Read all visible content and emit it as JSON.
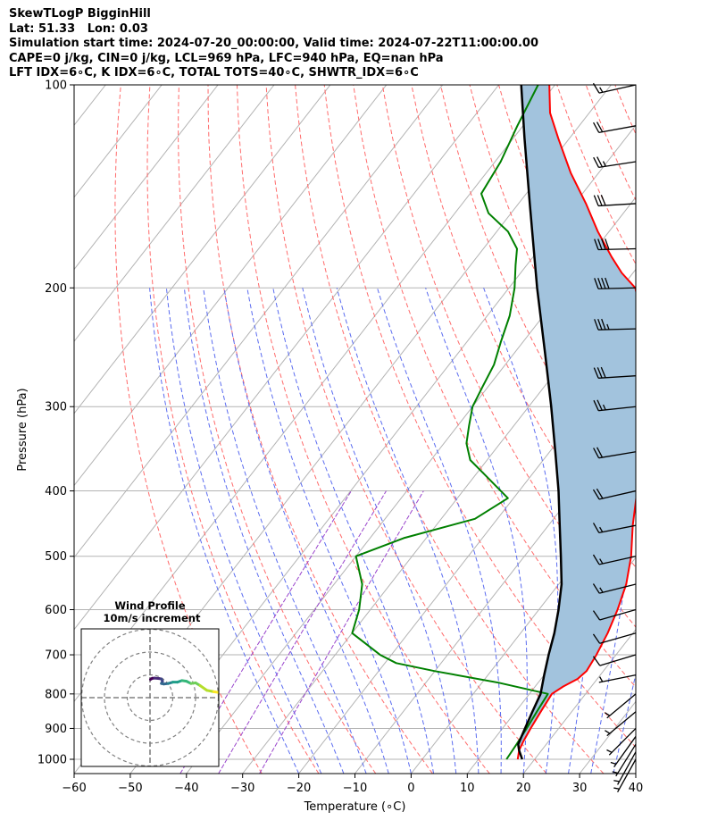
{
  "header": {
    "line1": "SkewTLogP BigginHill",
    "line2": "Lat: 51.33   Lon: 0.03",
    "line3": "Simulation start time: 2024-07-20_00:00:00, Valid time: 2024-07-22T11:00:00.00",
    "line4": "CAPE=0 j/kg, CIN=0 j/kg, LCL=969 hPa, LFC=940 hPa, EQ=nan hPa",
    "line5": "LFT IDX=6∘C, K IDX=6∘C, TOTAL TOTS=40∘C, SHWTR_IDX=6∘C"
  },
  "chart_data": {
    "type": "line",
    "subtype": "skew-t log-p",
    "xlabel": "Temperature (∘C)",
    "ylabel": "Pressure (hPa)",
    "xlim": [
      -60,
      40
    ],
    "ylim": [
      1050,
      100
    ],
    "y_scale": "log",
    "grid": true,
    "x_ticks": [
      -60,
      -50,
      -40,
      -30,
      -20,
      -10,
      0,
      10,
      20,
      30,
      40
    ],
    "x_tick_labels": [
      "−60",
      "−50",
      "−40",
      "−30",
      "−20",
      "−10",
      "0",
      "10",
      "20",
      "30",
      "40"
    ],
    "y_ticks": [
      1000,
      900,
      800,
      700,
      600,
      500,
      400,
      300,
      200,
      100
    ],
    "y_tick_labels": [
      "1000",
      "900",
      "800",
      "700",
      "600",
      "500",
      "400",
      "300",
      "200",
      "100"
    ],
    "series": [
      {
        "color": "#ff0000",
        "points": [
          [
            1000,
            17
          ],
          [
            970,
            16
          ],
          [
            940,
            15.5
          ],
          [
            900,
            15
          ],
          [
            850,
            14.5
          ],
          [
            800,
            14
          ],
          [
            780,
            15
          ],
          [
            760,
            16.5
          ],
          [
            740,
            17
          ],
          [
            700,
            16.5
          ],
          [
            650,
            15.5
          ],
          [
            600,
            14
          ],
          [
            550,
            12
          ],
          [
            500,
            9
          ],
          [
            450,
            5
          ],
          [
            400,
            1
          ],
          [
            350,
            -4
          ],
          [
            300,
            -9
          ],
          [
            270,
            -13.5
          ],
          [
            250,
            -16.5
          ],
          [
            230,
            -20
          ],
          [
            210,
            -25
          ],
          [
            200,
            -27.5
          ],
          [
            190,
            -32
          ],
          [
            180,
            -36
          ],
          [
            165,
            -42
          ],
          [
            150,
            -48
          ],
          [
            135,
            -55
          ],
          [
            120,
            -62
          ],
          [
            110,
            -67
          ],
          [
            100,
            -71
          ]
        ]
      },
      {
        "color": "#008000",
        "points": [
          [
            1000,
            15
          ],
          [
            950,
            14.7
          ],
          [
            900,
            14.3
          ],
          [
            850,
            13.8
          ],
          [
            800,
            13.3
          ],
          [
            770,
            3
          ],
          [
            740,
            -10
          ],
          [
            720,
            -18
          ],
          [
            700,
            -22
          ],
          [
            650,
            -30
          ],
          [
            600,
            -32
          ],
          [
            550,
            -35
          ],
          [
            500,
            -40
          ],
          [
            470,
            -34
          ],
          [
            440,
            -24
          ],
          [
            410,
            -21
          ],
          [
            380,
            -28
          ],
          [
            360,
            -33
          ],
          [
            340,
            -36
          ],
          [
            320,
            -38
          ],
          [
            300,
            -40
          ],
          [
            280,
            -41
          ],
          [
            260,
            -42
          ],
          [
            240,
            -44
          ],
          [
            220,
            -46
          ],
          [
            200,
            -49
          ],
          [
            185,
            -52
          ],
          [
            175,
            -54
          ],
          [
            165,
            -58
          ],
          [
            155,
            -64
          ],
          [
            145,
            -68
          ],
          [
            130,
            -69
          ],
          [
            115,
            -71
          ],
          [
            100,
            -73
          ]
        ]
      },
      {
        "color": "#000000",
        "points": [
          [
            1000,
            17.8
          ],
          [
            970,
            16
          ],
          [
            950,
            15
          ],
          [
            900,
            14
          ],
          [
            850,
            13
          ],
          [
            800,
            12
          ],
          [
            750,
            10
          ],
          [
            700,
            8
          ],
          [
            650,
            6
          ],
          [
            600,
            3.5
          ],
          [
            550,
            0.5
          ],
          [
            500,
            -3.5
          ],
          [
            450,
            -8
          ],
          [
            400,
            -13
          ],
          [
            350,
            -19
          ],
          [
            300,
            -26
          ],
          [
            250,
            -34.5
          ],
          [
            200,
            -45
          ],
          [
            150,
            -58
          ],
          [
            120,
            -68
          ],
          [
            100,
            -76
          ]
        ]
      }
    ],
    "winds": [
      {
        "p": 1000,
        "u": 2.5,
        "v": 4.5
      },
      {
        "p": 975,
        "u": 2.5,
        "v": 4.5
      },
      {
        "p": 950,
        "u": 2.5,
        "v": 4
      },
      {
        "p": 925,
        "u": 2.5,
        "v": 3.5
      },
      {
        "p": 900,
        "u": 3,
        "v": 3
      },
      {
        "p": 850,
        "u": 3,
        "v": 2.5
      },
      {
        "p": 800,
        "u": 3,
        "v": 2.5
      },
      {
        "p": 750,
        "u": 5,
        "v": 1
      },
      {
        "p": 700,
        "u": 5,
        "v": 1.5
      },
      {
        "p": 650,
        "u": 7,
        "v": 2
      },
      {
        "p": 600,
        "u": 7,
        "v": 2
      },
      {
        "p": 550,
        "u": 8,
        "v": 2
      },
      {
        "p": 500,
        "u": 9,
        "v": 2
      },
      {
        "p": 450,
        "u": 10,
        "v": 2
      },
      {
        "p": 400,
        "u": 11,
        "v": 2.5
      },
      {
        "p": 350,
        "u": 12,
        "v": 2
      },
      {
        "p": 300,
        "u": 14,
        "v": 1.5
      },
      {
        "p": 270,
        "u": 16,
        "v": 1
      },
      {
        "p": 230,
        "u": 19,
        "v": 0.5
      },
      {
        "p": 200,
        "u": 21,
        "v": 0.5
      },
      {
        "p": 175,
        "u": 21,
        "v": 0.5
      },
      {
        "p": 150,
        "u": 17,
        "v": 1
      },
      {
        "p": 130,
        "u": 13,
        "v": 2
      },
      {
        "p": 115,
        "u": 11,
        "v": 2
      },
      {
        "p": 100,
        "u": 9,
        "v": 2
      }
    ],
    "inset": {
      "title": "Wind Profile",
      "subtitle": "10m/s increment",
      "rings_ms": [
        10,
        20,
        30
      ],
      "hodograph": [
        [
          0.2,
          8
        ],
        [
          1,
          8.5
        ],
        [
          2,
          8.6
        ],
        [
          4,
          8.4
        ],
        [
          5,
          8.2
        ],
        [
          5.5,
          7.2
        ],
        [
          5,
          6.2
        ],
        [
          6,
          6
        ],
        [
          8,
          6.2
        ],
        [
          10,
          6.8
        ],
        [
          12,
          6.8
        ],
        [
          14,
          7.5
        ],
        [
          16,
          7.2
        ],
        [
          18,
          6.2
        ],
        [
          20,
          6.5
        ],
        [
          22,
          5.3
        ],
        [
          25,
          3.2
        ],
        [
          28,
          2.6
        ],
        [
          30,
          2.3
        ]
      ],
      "colormap": "viridis"
    },
    "colors": {
      "temperature": "#ff0000",
      "dewpoint": "#008000",
      "parcel": "#000000",
      "cape_fill": "#a2c3dd",
      "isotherm": "#b3b3b3",
      "dry_adiabat": "#ff6b6b",
      "moist_adiabat": "#5b6cf0",
      "mixing_ratio": "#9944cc"
    }
  }
}
